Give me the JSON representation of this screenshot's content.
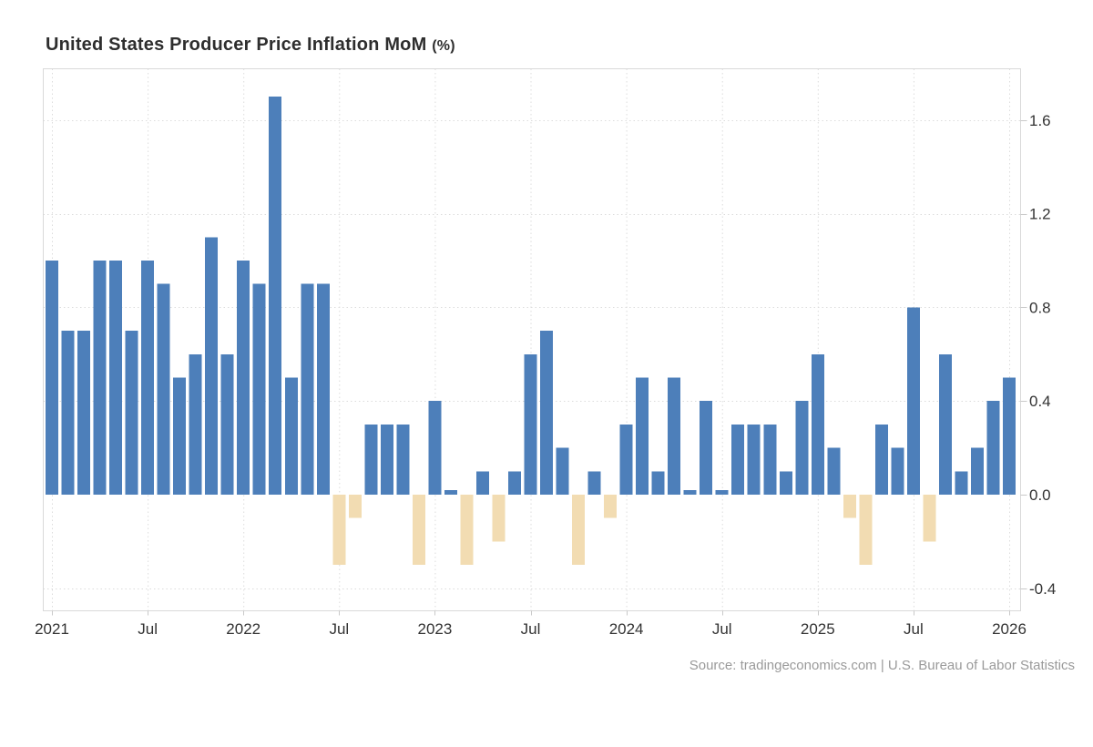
{
  "title": {
    "main": "United States Producer Price Inflation MoM",
    "suffix": "(%)"
  },
  "source": {
    "text": "Source: tradingeconomics.com | U.S. Bureau of Labor Statistics"
  },
  "colors": {
    "positive_bar": "#4d7fba",
    "negative_bar": "#f2dcb2",
    "grid": "#dcdcdc",
    "frame": "#d9d9d9",
    "tick": "#c9c9c9",
    "axis_text": "#333333",
    "title_text": "#2e2e2e",
    "source_text": "#9a9a9a",
    "background": "#ffffff"
  },
  "chart_data": {
    "type": "bar",
    "title": "United States Producer Price Inflation MoM (%)",
    "xlabel": "",
    "ylabel": "",
    "ylim": [
      -0.5,
      1.82
    ],
    "grid": "dotted",
    "legend": "none",
    "y_ticks": [
      1.6,
      1.2,
      0.8,
      0.4,
      0.0,
      -0.4
    ],
    "y_tick_labels": [
      "1.6",
      "1.2",
      "0.8",
      "0.4",
      "0.0",
      "-0.4"
    ],
    "x_ticks": [
      {
        "label": "2021",
        "month_index": 0
      },
      {
        "label": "Jul",
        "month_index": 6
      },
      {
        "label": "2022",
        "month_index": 12
      },
      {
        "label": "Jul",
        "month_index": 18
      },
      {
        "label": "2023",
        "month_index": 24
      },
      {
        "label": "Jul",
        "month_index": 30
      },
      {
        "label": "2024",
        "month_index": 36
      },
      {
        "label": "Jul",
        "month_index": 42
      },
      {
        "label": "2025",
        "month_index": 48
      },
      {
        "label": "Jul",
        "month_index": 54
      },
      {
        "label": "2026",
        "month_index": 60
      }
    ],
    "categories": [
      "2021-01",
      "2021-02",
      "2021-03",
      "2021-04",
      "2021-05",
      "2021-06",
      "2021-07",
      "2021-08",
      "2021-09",
      "2021-10",
      "2021-11",
      "2021-12",
      "2022-01",
      "2022-02",
      "2022-03",
      "2022-04",
      "2022-05",
      "2022-06",
      "2022-07",
      "2022-08",
      "2022-09",
      "2022-10",
      "2022-11",
      "2022-12",
      "2023-01",
      "2023-02",
      "2023-03",
      "2023-04",
      "2023-05",
      "2023-06",
      "2023-07",
      "2023-08",
      "2023-09",
      "2023-10",
      "2023-11",
      "2023-12",
      "2024-01",
      "2024-02",
      "2024-03",
      "2024-04",
      "2024-05",
      "2024-06",
      "2024-07",
      "2024-08",
      "2024-09",
      "2024-10",
      "2024-11",
      "2024-12",
      "2025-01",
      "2025-02",
      "2025-03",
      "2025-04",
      "2025-05",
      "2025-06",
      "2025-07",
      "2025-08",
      "2025-09",
      "2025-10",
      "2025-11",
      "2025-12",
      "2026-01"
    ],
    "values": [
      1.0,
      0.7,
      0.7,
      1.0,
      1.0,
      0.7,
      1.0,
      0.9,
      0.5,
      0.6,
      1.1,
      0.6,
      1.0,
      0.9,
      1.7,
      0.5,
      0.9,
      0.9,
      -0.3,
      -0.1,
      0.3,
      0.3,
      0.3,
      -0.3,
      0.4,
      0.0,
      -0.3,
      0.1,
      -0.2,
      0.1,
      0.6,
      0.7,
      0.2,
      -0.3,
      0.1,
      -0.1,
      0.3,
      0.5,
      0.1,
      0.5,
      0.0,
      0.4,
      0.0,
      0.3,
      0.3,
      0.3,
      0.1,
      0.4,
      0.6,
      0.2,
      -0.1,
      -0.3,
      0.3,
      0.2,
      0.8,
      -0.2,
      0.6,
      0.1,
      0.2,
      0.4,
      0.5
    ]
  }
}
